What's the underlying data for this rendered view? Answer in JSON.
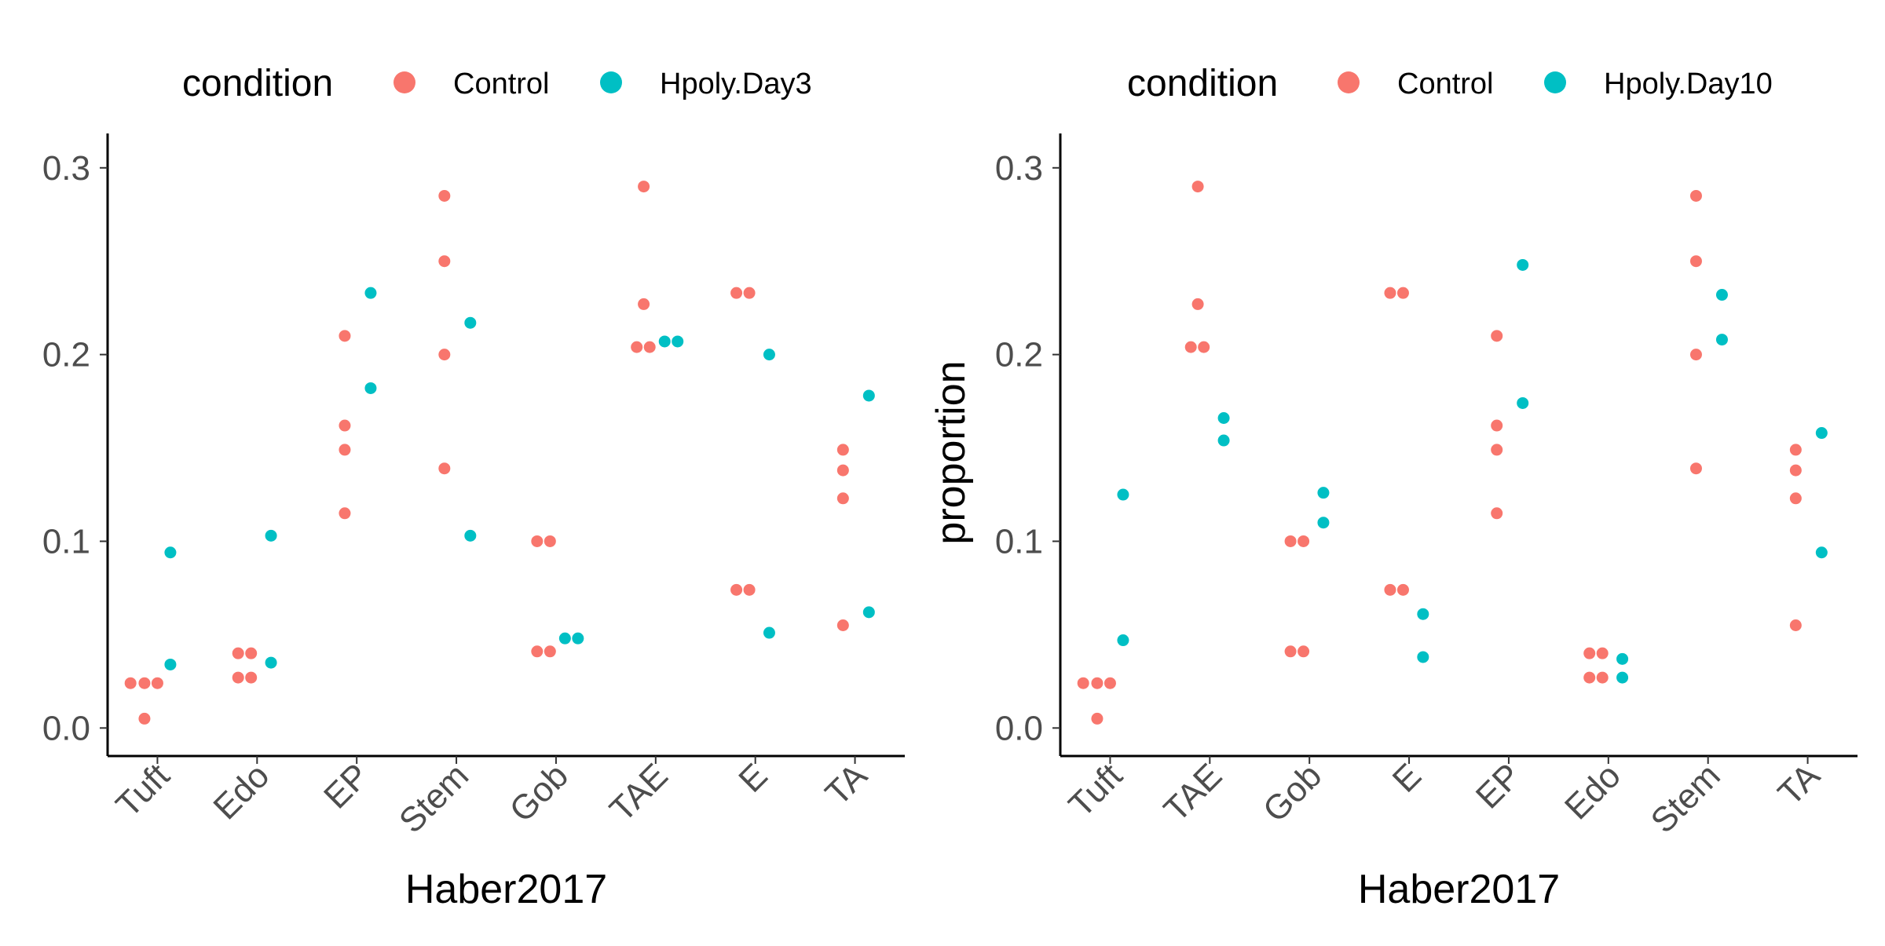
{
  "chart_data": [
    {
      "type": "scatter",
      "panel": "left",
      "legend": {
        "title": "condition",
        "position": "top",
        "entries": [
          {
            "label": "Control",
            "color": "#F8766D"
          },
          {
            "label": "Hpoly.Day3",
            "color": "#00BFC4"
          }
        ]
      },
      "xlabel": "Haber2017",
      "ylabel": "",
      "ylim": [
        -0.015,
        0.31
      ],
      "yticks": [
        0.0,
        0.1,
        0.2,
        0.3
      ],
      "ytick_labels": [
        "0.0",
        "0.1",
        "0.2",
        "0.3"
      ],
      "grid": false,
      "categories": [
        "Tuft",
        "Edo",
        "EP",
        "Stem",
        "Gob",
        "TAE",
        "E",
        "TA"
      ],
      "series": [
        {
          "name": "Control",
          "color": "#F8766D",
          "points": [
            {
              "x": "Tuft",
              "y": 0.024,
              "offset": -0.27
            },
            {
              "x": "Tuft",
              "y": 0.024,
              "offset": -0.13
            },
            {
              "x": "Tuft",
              "y": 0.024,
              "offset": 0.0
            },
            {
              "x": "Tuft",
              "y": 0.005,
              "offset": -0.13
            },
            {
              "x": "Edo",
              "y": 0.04,
              "offset": -0.19
            },
            {
              "x": "Edo",
              "y": 0.04,
              "offset": -0.06
            },
            {
              "x": "Edo",
              "y": 0.027,
              "offset": -0.19
            },
            {
              "x": "Edo",
              "y": 0.027,
              "offset": -0.06
            },
            {
              "x": "EP",
              "y": 0.21,
              "offset": -0.12
            },
            {
              "x": "EP",
              "y": 0.162,
              "offset": -0.12
            },
            {
              "x": "EP",
              "y": 0.149,
              "offset": -0.12
            },
            {
              "x": "EP",
              "y": 0.115,
              "offset": -0.12
            },
            {
              "x": "Stem",
              "y": 0.285,
              "offset": -0.12
            },
            {
              "x": "Stem",
              "y": 0.25,
              "offset": -0.12
            },
            {
              "x": "Stem",
              "y": 0.2,
              "offset": -0.12
            },
            {
              "x": "Stem",
              "y": 0.139,
              "offset": -0.12
            },
            {
              "x": "Gob",
              "y": 0.1,
              "offset": -0.19
            },
            {
              "x": "Gob",
              "y": 0.1,
              "offset": -0.06
            },
            {
              "x": "Gob",
              "y": 0.041,
              "offset": -0.19
            },
            {
              "x": "Gob",
              "y": 0.041,
              "offset": -0.06
            },
            {
              "x": "TAE",
              "y": 0.29,
              "offset": -0.12
            },
            {
              "x": "TAE",
              "y": 0.227,
              "offset": -0.12
            },
            {
              "x": "TAE",
              "y": 0.204,
              "offset": -0.19
            },
            {
              "x": "TAE",
              "y": 0.204,
              "offset": -0.06
            },
            {
              "x": "E",
              "y": 0.233,
              "offset": -0.19
            },
            {
              "x": "E",
              "y": 0.233,
              "offset": -0.06
            },
            {
              "x": "E",
              "y": 0.074,
              "offset": -0.19
            },
            {
              "x": "E",
              "y": 0.074,
              "offset": -0.06
            },
            {
              "x": "TA",
              "y": 0.149,
              "offset": -0.12
            },
            {
              "x": "TA",
              "y": 0.138,
              "offset": -0.12
            },
            {
              "x": "TA",
              "y": 0.123,
              "offset": -0.12
            },
            {
              "x": "TA",
              "y": 0.055,
              "offset": -0.12
            }
          ]
        },
        {
          "name": "Hpoly.Day3",
          "color": "#00BFC4",
          "points": [
            {
              "x": "Tuft",
              "y": 0.094,
              "offset": 0.13
            },
            {
              "x": "Tuft",
              "y": 0.034,
              "offset": 0.13
            },
            {
              "x": "Edo",
              "y": 0.103,
              "offset": 0.14
            },
            {
              "x": "Edo",
              "y": 0.035,
              "offset": 0.14
            },
            {
              "x": "EP",
              "y": 0.233,
              "offset": 0.14
            },
            {
              "x": "EP",
              "y": 0.182,
              "offset": 0.14
            },
            {
              "x": "Stem",
              "y": 0.217,
              "offset": 0.14
            },
            {
              "x": "Stem",
              "y": 0.103,
              "offset": 0.14
            },
            {
              "x": "Gob",
              "y": 0.048,
              "offset": 0.09
            },
            {
              "x": "Gob",
              "y": 0.048,
              "offset": 0.22
            },
            {
              "x": "TAE",
              "y": 0.207,
              "offset": 0.09
            },
            {
              "x": "TAE",
              "y": 0.207,
              "offset": 0.22
            },
            {
              "x": "E",
              "y": 0.2,
              "offset": 0.14
            },
            {
              "x": "E",
              "y": 0.051,
              "offset": 0.14
            },
            {
              "x": "TA",
              "y": 0.178,
              "offset": 0.14
            },
            {
              "x": "TA",
              "y": 0.062,
              "offset": 0.14
            }
          ]
        }
      ]
    },
    {
      "type": "scatter",
      "panel": "right",
      "legend": {
        "title": "condition",
        "position": "top",
        "entries": [
          {
            "label": "Control",
            "color": "#F8766D"
          },
          {
            "label": "Hpoly.Day10",
            "color": "#00BFC4"
          }
        ]
      },
      "xlabel": "Haber2017",
      "ylabel": "proportion",
      "ylim": [
        -0.015,
        0.31
      ],
      "yticks": [
        0.0,
        0.1,
        0.2,
        0.3
      ],
      "ytick_labels": [
        "0.0",
        "0.1",
        "0.2",
        "0.3"
      ],
      "grid": false,
      "categories": [
        "Tuft",
        "TAE",
        "Gob",
        "E",
        "EP",
        "Edo",
        "Stem",
        "TA"
      ],
      "series": [
        {
          "name": "Control",
          "color": "#F8766D",
          "points": [
            {
              "x": "Tuft",
              "y": 0.024,
              "offset": -0.27
            },
            {
              "x": "Tuft",
              "y": 0.024,
              "offset": -0.13
            },
            {
              "x": "Tuft",
              "y": 0.024,
              "offset": 0.0
            },
            {
              "x": "Tuft",
              "y": 0.005,
              "offset": -0.13
            },
            {
              "x": "TAE",
              "y": 0.29,
              "offset": -0.12
            },
            {
              "x": "TAE",
              "y": 0.227,
              "offset": -0.12
            },
            {
              "x": "TAE",
              "y": 0.204,
              "offset": -0.19
            },
            {
              "x": "TAE",
              "y": 0.204,
              "offset": -0.06
            },
            {
              "x": "Gob",
              "y": 0.1,
              "offset": -0.19
            },
            {
              "x": "Gob",
              "y": 0.1,
              "offset": -0.06
            },
            {
              "x": "Gob",
              "y": 0.041,
              "offset": -0.19
            },
            {
              "x": "Gob",
              "y": 0.041,
              "offset": -0.06
            },
            {
              "x": "E",
              "y": 0.233,
              "offset": -0.19
            },
            {
              "x": "E",
              "y": 0.233,
              "offset": -0.06
            },
            {
              "x": "E",
              "y": 0.074,
              "offset": -0.19
            },
            {
              "x": "E",
              "y": 0.074,
              "offset": -0.06
            },
            {
              "x": "EP",
              "y": 0.21,
              "offset": -0.12
            },
            {
              "x": "EP",
              "y": 0.162,
              "offset": -0.12
            },
            {
              "x": "EP",
              "y": 0.149,
              "offset": -0.12
            },
            {
              "x": "EP",
              "y": 0.115,
              "offset": -0.12
            },
            {
              "x": "Edo",
              "y": 0.04,
              "offset": -0.19
            },
            {
              "x": "Edo",
              "y": 0.04,
              "offset": -0.06
            },
            {
              "x": "Edo",
              "y": 0.027,
              "offset": -0.19
            },
            {
              "x": "Edo",
              "y": 0.027,
              "offset": -0.06
            },
            {
              "x": "Stem",
              "y": 0.285,
              "offset": -0.12
            },
            {
              "x": "Stem",
              "y": 0.25,
              "offset": -0.12
            },
            {
              "x": "Stem",
              "y": 0.2,
              "offset": -0.12
            },
            {
              "x": "Stem",
              "y": 0.139,
              "offset": -0.12
            },
            {
              "x": "TA",
              "y": 0.149,
              "offset": -0.12
            },
            {
              "x": "TA",
              "y": 0.138,
              "offset": -0.12
            },
            {
              "x": "TA",
              "y": 0.123,
              "offset": -0.12
            },
            {
              "x": "TA",
              "y": 0.055,
              "offset": -0.12
            }
          ]
        },
        {
          "name": "Hpoly.Day10",
          "color": "#00BFC4",
          "points": [
            {
              "x": "Tuft",
              "y": 0.125,
              "offset": 0.13
            },
            {
              "x": "Tuft",
              "y": 0.047,
              "offset": 0.13
            },
            {
              "x": "TAE",
              "y": 0.166,
              "offset": 0.14
            },
            {
              "x": "TAE",
              "y": 0.154,
              "offset": 0.14
            },
            {
              "x": "Gob",
              "y": 0.126,
              "offset": 0.14
            },
            {
              "x": "Gob",
              "y": 0.11,
              "offset": 0.14
            },
            {
              "x": "E",
              "y": 0.061,
              "offset": 0.14
            },
            {
              "x": "E",
              "y": 0.038,
              "offset": 0.14
            },
            {
              "x": "EP",
              "y": 0.248,
              "offset": 0.14
            },
            {
              "x": "EP",
              "y": 0.174,
              "offset": 0.14
            },
            {
              "x": "Edo",
              "y": 0.037,
              "offset": 0.14
            },
            {
              "x": "Edo",
              "y": 0.027,
              "offset": 0.14
            },
            {
              "x": "Stem",
              "y": 0.232,
              "offset": 0.14
            },
            {
              "x": "Stem",
              "y": 0.208,
              "offset": 0.14
            },
            {
              "x": "TA",
              "y": 0.158,
              "offset": 0.14
            },
            {
              "x": "TA",
              "y": 0.094,
              "offset": 0.14
            }
          ]
        }
      ]
    }
  ]
}
